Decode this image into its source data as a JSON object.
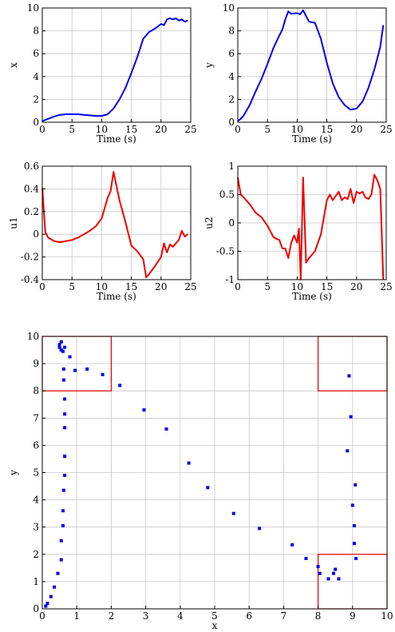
{
  "chart_data": [
    {
      "type": "line",
      "xlabel": "Time (s)",
      "ylabel": "x",
      "xlim": [
        0,
        25
      ],
      "ylim": [
        0,
        10
      ],
      "grid": true,
      "x_ticks": [
        0,
        5,
        10,
        15,
        20,
        25
      ],
      "y_ticks": [
        0,
        2,
        4,
        6,
        8,
        10
      ],
      "color": "#0000ee",
      "series": [
        {
          "x": [
            0,
            1,
            2,
            3,
            4,
            5,
            6,
            7,
            8,
            9,
            10,
            11,
            12,
            13,
            14,
            15,
            16,
            16.5,
            17,
            18,
            19,
            20,
            20.5,
            21,
            21.5,
            22,
            22.5,
            23,
            23.5,
            24,
            24.5
          ],
          "y": [
            0.1,
            0.3,
            0.5,
            0.65,
            0.7,
            0.7,
            0.7,
            0.65,
            0.6,
            0.55,
            0.55,
            0.7,
            1.2,
            2.0,
            3.0,
            4.3,
            5.7,
            6.5,
            7.3,
            7.9,
            8.2,
            8.6,
            8.5,
            9.0,
            9.1,
            9.0,
            9.1,
            8.9,
            9.0,
            8.8,
            8.9
          ]
        }
      ]
    },
    {
      "type": "line",
      "xlabel": "Time (s)",
      "ylabel": "y",
      "xlim": [
        0,
        25
      ],
      "ylim": [
        0,
        10
      ],
      "grid": true,
      "x_ticks": [
        0,
        5,
        10,
        15,
        20,
        25
      ],
      "y_ticks": [
        0,
        2,
        4,
        6,
        8,
        10
      ],
      "color": "#0000ee",
      "series": [
        {
          "x": [
            0,
            0.5,
            1,
            2,
            3,
            4,
            5,
            6,
            7,
            7.5,
            8,
            8.5,
            9,
            10,
            10.5,
            11,
            12,
            13,
            14,
            15,
            16,
            17,
            18,
            19,
            20,
            21,
            22,
            23,
            24,
            24.5
          ],
          "y": [
            0.1,
            0.3,
            0.6,
            1.5,
            2.7,
            3.8,
            5.1,
            6.5,
            7.6,
            8.1,
            9.0,
            9.7,
            9.5,
            9.55,
            9.45,
            9.8,
            8.8,
            8.7,
            7.3,
            5.2,
            3.4,
            2.2,
            1.5,
            1.1,
            1.2,
            1.8,
            3.0,
            4.6,
            6.6,
            8.5
          ]
        }
      ]
    },
    {
      "type": "line",
      "xlabel": "Time (s)",
      "ylabel": "u1",
      "xlim": [
        0,
        25
      ],
      "ylim": [
        -0.4,
        0.6
      ],
      "grid": true,
      "x_ticks": [
        0,
        5,
        10,
        15,
        20,
        25
      ],
      "y_ticks": [
        -0.4,
        -0.2,
        0,
        0.2,
        0.4,
        0.6
      ],
      "color": "#ee0000",
      "series": [
        {
          "x": [
            0,
            0.5,
            1,
            2,
            3,
            4,
            5,
            6,
            7,
            8,
            9,
            10,
            11,
            11.5,
            12,
            13,
            14,
            15,
            16,
            17,
            17.5,
            18,
            19,
            20,
            20.5,
            21,
            21.5,
            22,
            22.5,
            23,
            23.5,
            24,
            24.5
          ],
          "y": [
            0.41,
            0.02,
            -0.03,
            -0.06,
            -0.07,
            -0.06,
            -0.05,
            -0.03,
            0.0,
            0.03,
            0.07,
            0.14,
            0.32,
            0.38,
            0.55,
            0.3,
            0.11,
            -0.1,
            -0.15,
            -0.22,
            -0.38,
            -0.35,
            -0.28,
            -0.2,
            -0.08,
            -0.16,
            -0.09,
            -0.11,
            -0.08,
            -0.05,
            0.03,
            -0.02,
            0.0
          ]
        }
      ]
    },
    {
      "type": "line",
      "xlabel": "Time (s)",
      "ylabel": "u2",
      "xlim": [
        0,
        25
      ],
      "ylim": [
        -1,
        1
      ],
      "grid": true,
      "x_ticks": [
        0,
        5,
        10,
        15,
        20,
        25
      ],
      "y_ticks": [
        -1,
        -0.5,
        0,
        0.5,
        1
      ],
      "color": "#ee0000",
      "series": [
        {
          "x": [
            0,
            0.5,
            1,
            2,
            3,
            4,
            5,
            6,
            6.5,
            7,
            7.5,
            8,
            8.5,
            9,
            9.5,
            10,
            10.3,
            10.6,
            11,
            11.5,
            12,
            13,
            14,
            15,
            15.5,
            16,
            17,
            17.5,
            18,
            18.5,
            19,
            19.5,
            20,
            20.5,
            21,
            21.5,
            22,
            22.5,
            23,
            23.5,
            24,
            24.5
          ],
          "y": [
            0.8,
            0.5,
            0.45,
            0.33,
            0.18,
            0.1,
            -0.05,
            -0.25,
            -0.28,
            -0.3,
            -0.45,
            -0.45,
            -0.62,
            -0.35,
            -0.22,
            -0.35,
            -0.1,
            -1.0,
            0.8,
            -0.7,
            -0.62,
            -0.5,
            -0.2,
            0.4,
            0.5,
            0.4,
            0.55,
            0.4,
            0.45,
            0.42,
            0.6,
            0.35,
            0.55,
            0.52,
            0.55,
            0.45,
            0.42,
            0.5,
            0.85,
            0.75,
            0.6,
            -1.0
          ]
        }
      ]
    },
    {
      "type": "scatter",
      "xlabel": "x",
      "ylabel": "y",
      "xlim": [
        0,
        10
      ],
      "ylim": [
        0,
        10
      ],
      "grid": true,
      "x_ticks": [
        0,
        1,
        2,
        3,
        4,
        5,
        6,
        7,
        8,
        9,
        10
      ],
      "y_ticks": [
        0,
        1,
        2,
        3,
        4,
        5,
        6,
        7,
        8,
        9,
        10
      ],
      "color": "#0000ee",
      "regions": [
        {
          "x": [
            0,
            2
          ],
          "y": [
            8,
            10
          ]
        },
        {
          "x": [
            8,
            10
          ],
          "y": [
            8,
            10
          ]
        },
        {
          "x": [
            8,
            10
          ],
          "y": [
            0,
            2
          ]
        }
      ],
      "region_color": "#dd0000",
      "series": [
        {
          "x": [
            0.1,
            0.15,
            0.25,
            0.35,
            0.45,
            0.55,
            0.55,
            0.6,
            0.6,
            0.62,
            0.65,
            0.65,
            0.65,
            0.65,
            0.65,
            0.62,
            0.62,
            0.6,
            0.55,
            0.5,
            0.5,
            0.55,
            0.65,
            0.8,
            0.95,
            1.3,
            1.75,
            2.25,
            2.95,
            3.6,
            4.25,
            4.8,
            5.55,
            6.3,
            7.25,
            7.65,
            8.0,
            8.05,
            8.3,
            8.45,
            8.5,
            8.6,
            8.85,
            8.9,
            8.95,
            9.0,
            9.05,
            9.05,
            9.08,
            9.1
          ],
          "y": [
            0.1,
            0.2,
            0.45,
            0.8,
            1.3,
            1.8,
            2.5,
            3.05,
            3.6,
            4.35,
            4.9,
            5.6,
            6.65,
            7.15,
            7.7,
            8.4,
            8.8,
            9.45,
            9.5,
            9.6,
            9.7,
            9.8,
            9.6,
            9.25,
            8.75,
            8.8,
            8.6,
            8.2,
            7.3,
            6.6,
            5.35,
            4.45,
            3.5,
            2.95,
            2.35,
            1.85,
            1.55,
            1.3,
            1.1,
            1.3,
            1.45,
            1.1,
            5.8,
            8.55,
            7.05,
            3.8,
            2.4,
            3.05,
            4.55,
            1.85
          ]
        }
      ]
    }
  ]
}
